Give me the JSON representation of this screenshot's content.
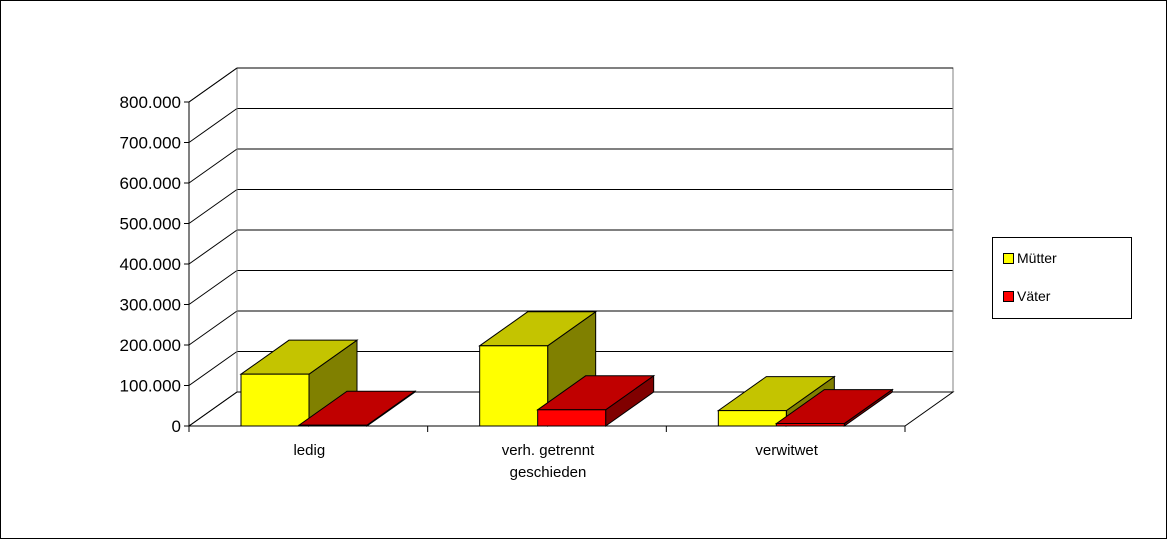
{
  "chart_data": {
    "type": "bar",
    "categories": [
      [
        "ledig"
      ],
      [
        "verh. getrennt",
        "geschieden"
      ],
      [
        "verwitwet"
      ]
    ],
    "series": [
      {
        "name": "Mütter",
        "values": [
          128000,
          198000,
          38000
        ],
        "front_color": "#ffff00",
        "top_color": "#c4c400",
        "side_color": "#808000"
      },
      {
        "name": "Väter",
        "values": [
          2000,
          40000,
          6000
        ],
        "front_color": "#ff0000",
        "top_color": "#c00000",
        "side_color": "#800000"
      }
    ],
    "y_ticks": [
      "0",
      "100.000",
      "200.000",
      "300.000",
      "400.000",
      "500.000",
      "600.000",
      "700.000",
      "800.000"
    ],
    "ylim": [
      0,
      800000
    ],
    "grid": true,
    "legend_position": "right",
    "three_d": true
  },
  "legend": {
    "items": [
      {
        "label": "Mütter",
        "color": "#ffff00"
      },
      {
        "label": "Väter",
        "color": "#ff0000"
      }
    ]
  }
}
